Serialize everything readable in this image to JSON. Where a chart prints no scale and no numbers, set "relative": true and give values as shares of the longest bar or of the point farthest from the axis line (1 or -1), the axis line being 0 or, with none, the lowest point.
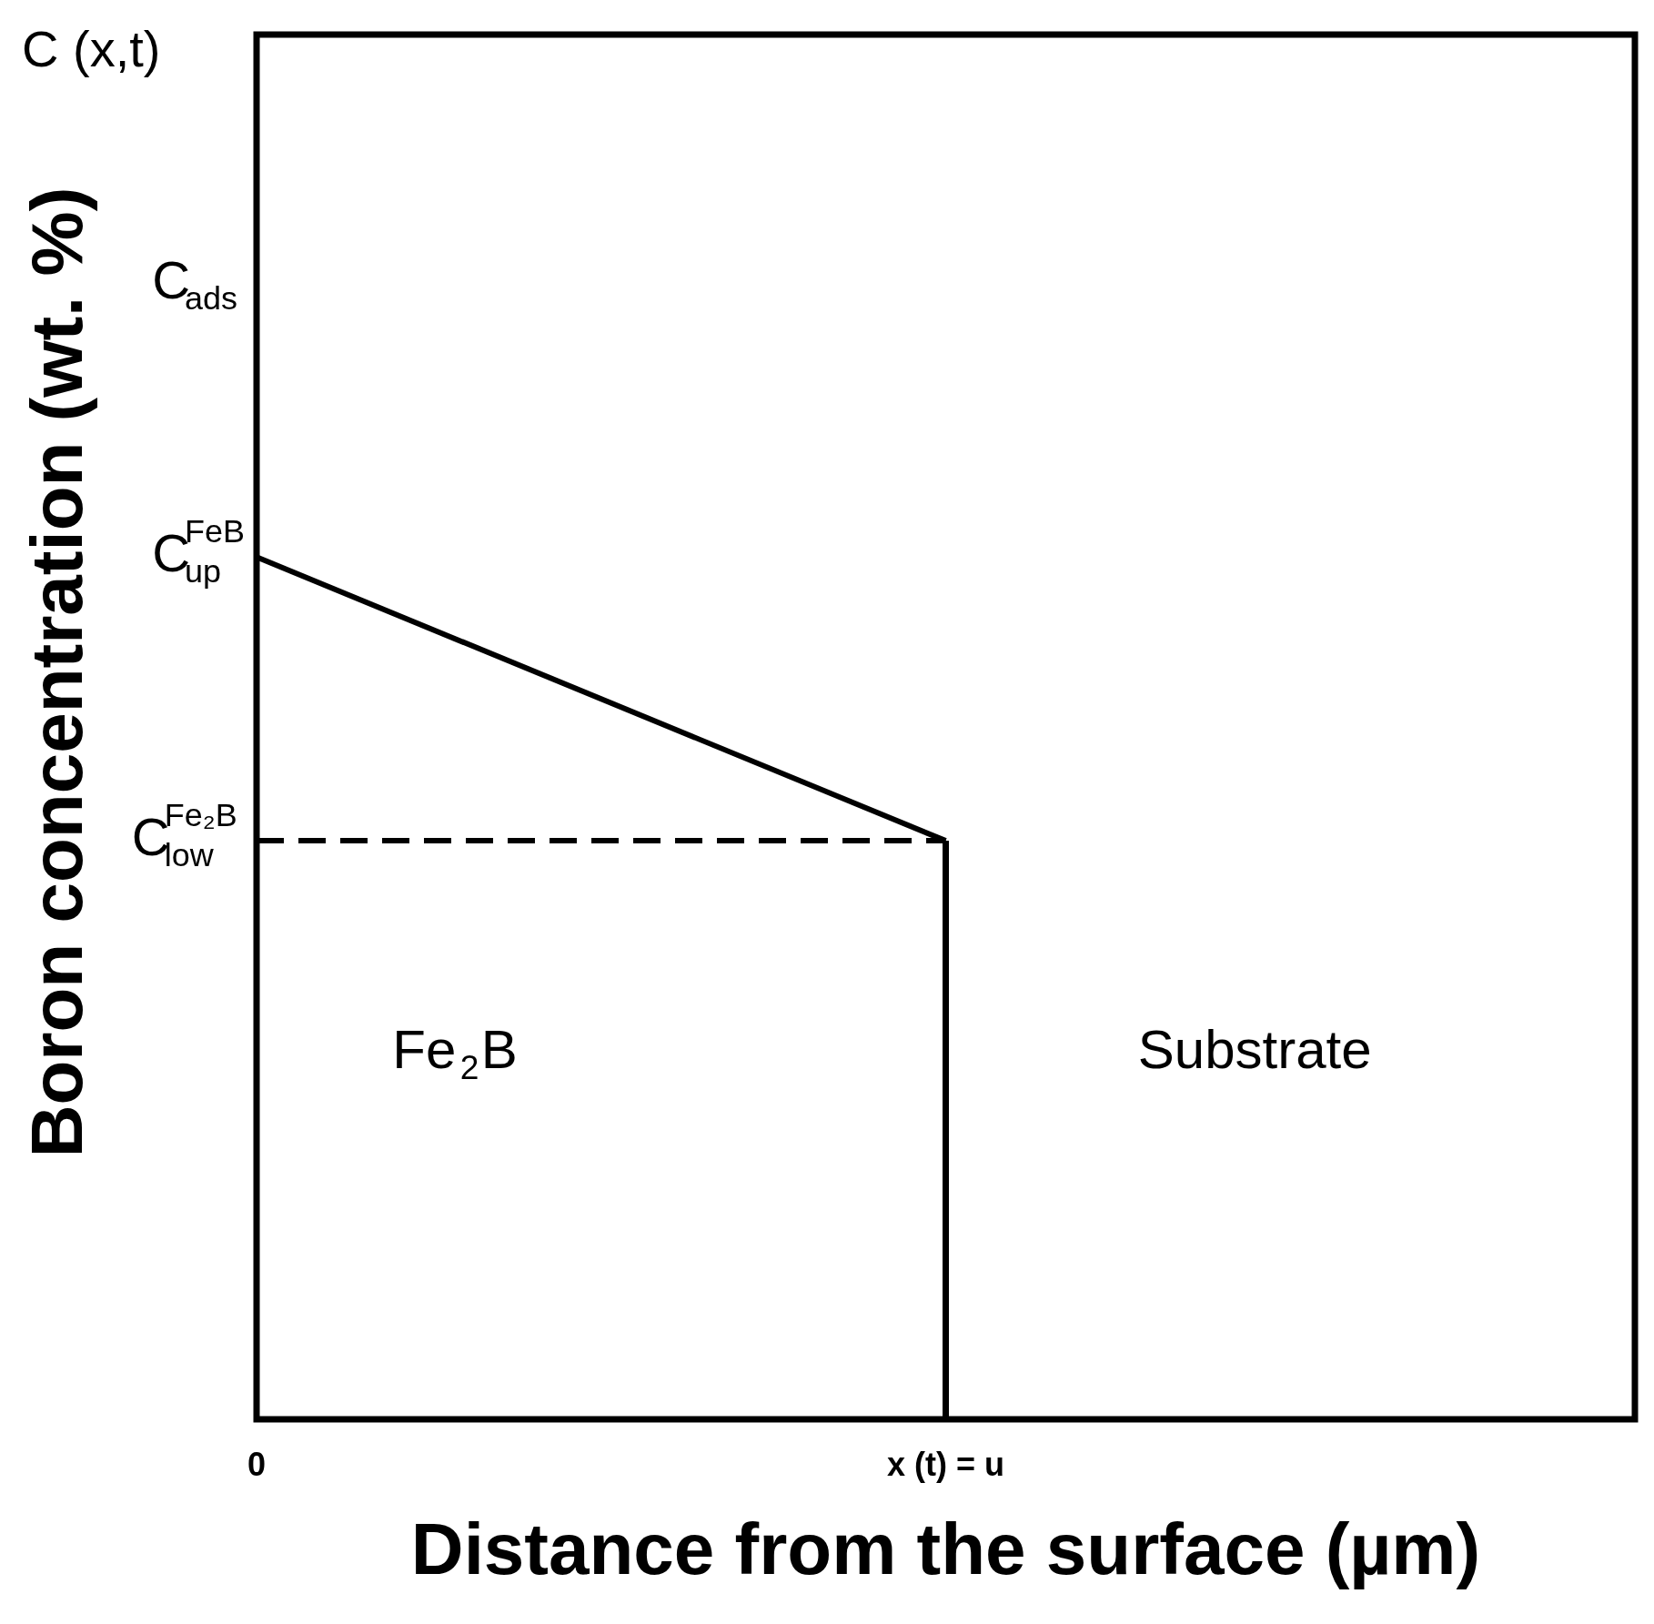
{
  "chart_data": {
    "type": "line",
    "xlabel": "Distance from the surface (µm)",
    "ylabel": "Boron concentration (wt. %)",
    "relative": true,
    "categories": [
      "0",
      "x (t) = u",
      null
    ],
    "series": [
      {
        "color": "#000000",
        "values": [
          1,
          0.671,
          null
        ]
      },
      {
        "color": "#000000",
        "line_style": "dashed",
        "values": [
          0.671,
          0.671,
          null
        ]
      },
      {
        "type": "bar",
        "color": "#000000",
        "values": [
          null,
          0.671,
          null
        ]
      }
    ],
    "annotations": [
      "C (x,t)",
      "C$_{ads}$",
      "Fe$_{2}$B",
      "Substrate",
      "C$_{up}$$^{FeB}$",
      "C$_{low}$$^{Fe₂B}$"
    ]
  }
}
